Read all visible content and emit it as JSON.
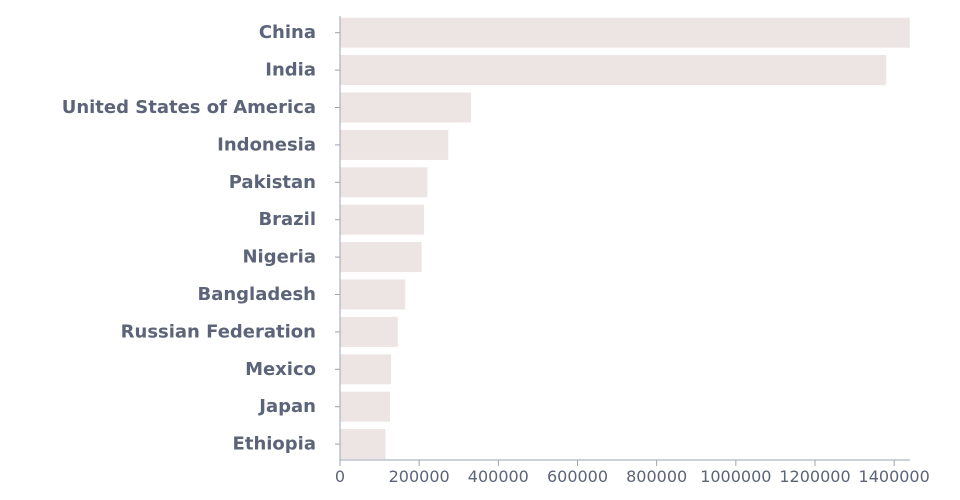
{
  "colors": {
    "bar": "#ede4e4",
    "axis": "#9ba3b6",
    "text": "#5b6478"
  },
  "chart_data": {
    "type": "bar",
    "orientation": "horizontal",
    "categories": [
      "China",
      "India",
      "United States of America",
      "Indonesia",
      "Pakistan",
      "Brazil",
      "Nigeria",
      "Bangladesh",
      "Russian Federation",
      "Mexico",
      "Japan",
      "Ethiopia"
    ],
    "values": [
      1439324000,
      1380004000,
      331003000,
      273524000,
      220892000,
      212559000,
      206140000,
      164689000,
      145934000,
      128933000,
      126476000,
      114964000
    ],
    "xlim": [
      0,
      1440000000
    ],
    "x_ticks": [
      0,
      200000000,
      400000000,
      600000000,
      800000000,
      1000000000,
      1200000000,
      1400000000
    ],
    "x_tick_labels": [
      "0",
      "200000",
      "400000",
      "600000",
      "800000",
      "1000000",
      "1200000",
      "1400000"
    ],
    "title": "",
    "xlabel": "",
    "ylabel": "",
    "grid": false,
    "legend": "none"
  }
}
